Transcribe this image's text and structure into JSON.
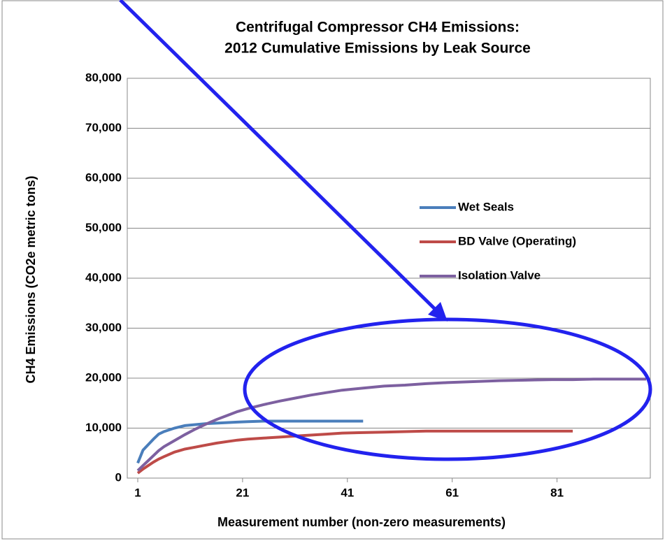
{
  "chart_data": {
    "type": "line",
    "title": "Centrifugal Compressor CH4 Emissions:",
    "subtitle": "2012 Cumulative Emissions by Leak Source",
    "y_label": "CH4 Emissions (CO2e  metric tons)",
    "x_label": "Measurement number (non-zero measurements)",
    "x": [
      1,
      2,
      3,
      4,
      5,
      6,
      8,
      10,
      12,
      14,
      16,
      18,
      20,
      22,
      25,
      28,
      31,
      34,
      37,
      40,
      44,
      48,
      52,
      56,
      60,
      65,
      70,
      75,
      80,
      84,
      88,
      92,
      96,
      98
    ],
    "series": [
      {
        "name": "Wet Seals",
        "color": "#4a7ebb",
        "values": [
          3000,
          5600,
          6700,
          7800,
          8800,
          9300,
          10000,
          10500,
          10700,
          10900,
          11000,
          11100,
          11200,
          11300,
          11400,
          11400,
          11400,
          11400,
          11400,
          11400,
          11400,
          null,
          null,
          null,
          null,
          null,
          null,
          null,
          null,
          null,
          null,
          null,
          null,
          null
        ]
      },
      {
        "name": "BD Valve (Operating)",
        "color": "#be4b48",
        "values": [
          1000,
          1800,
          2500,
          3200,
          3800,
          4300,
          5200,
          5800,
          6200,
          6600,
          7000,
          7300,
          7600,
          7800,
          8000,
          8200,
          8400,
          8600,
          8800,
          9000,
          9100,
          9200,
          9300,
          9400,
          9400,
          9400,
          9400,
          9400,
          9400,
          9400,
          null,
          null,
          null,
          null
        ]
      },
      {
        "name": "Isolation Valve",
        "color": "#7d60a0",
        "values": [
          1500,
          2500,
          3500,
          4500,
          5500,
          6300,
          7500,
          8700,
          9800,
          10800,
          11700,
          12500,
          13300,
          13900,
          14700,
          15400,
          16000,
          16600,
          17100,
          17600,
          18000,
          18400,
          18600,
          18900,
          19100,
          19300,
          19500,
          19600,
          19700,
          19700,
          19800,
          19800,
          19800,
          19800
        ]
      }
    ],
    "xlim": [
      -1,
      98.8
    ],
    "xticks": [
      1,
      21,
      41,
      61,
      81
    ],
    "ylim": [
      0,
      80000
    ],
    "yticks": [
      0,
      {
        "value": 10000,
        "label": "10,000"
      },
      {
        "value": 20000,
        "label": "20,000"
      },
      {
        "value": 30000,
        "label": "30,000"
      },
      {
        "value": 40000,
        "label": "40,000"
      },
      {
        "value": 50000,
        "label": "50,000"
      },
      {
        "value": 60000,
        "label": "60,000"
      },
      {
        "value": 70000,
        "label": "70,000"
      },
      {
        "value": 80000,
        "label": "80,000"
      }
    ],
    "grid": true
  }
}
